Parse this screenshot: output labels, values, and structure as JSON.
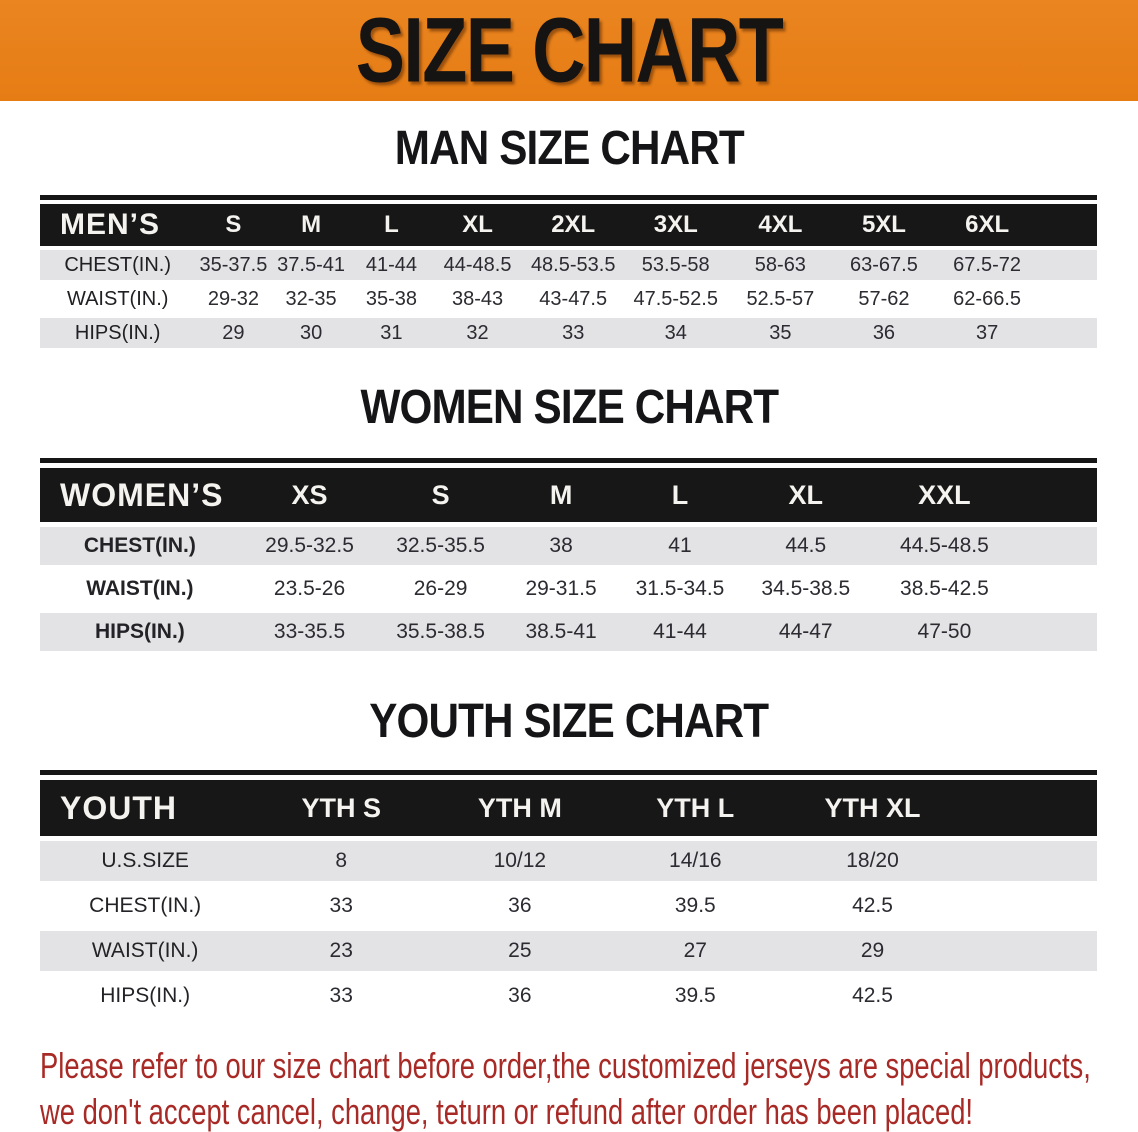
{
  "banner": {
    "title": "SIZE CHART",
    "bg_color": "#E8811B",
    "text_color": "#161313"
  },
  "sections": [
    {
      "title": "MAN SIZE CHART",
      "table": {
        "header_label": "MEN’S",
        "columns": [
          "S",
          "M",
          "L",
          "XL",
          "2XL",
          "3XL",
          "4XL",
          "5XL",
          "6XL"
        ],
        "rows": [
          {
            "label": "CHEST(IN.)",
            "values": [
              "35-37.5",
              "37.5-41",
              "41-44",
              "44-48.5",
              "48.5-53.5",
              "53.5-58",
              "58-63",
              "63-67.5",
              "67.5-72"
            ]
          },
          {
            "label": "WAIST(IN.)",
            "values": [
              "29-32",
              "32-35",
              "35-38",
              "38-43",
              "43-47.5",
              "47.5-52.5",
              "52.5-57",
              "57-62",
              "62-66.5"
            ]
          },
          {
            "label": "HIPS(IN.)",
            "values": [
              "29",
              "30",
              "31",
              "32",
              "33",
              "34",
              "35",
              "36",
              "37"
            ]
          }
        ]
      }
    },
    {
      "title": "WOMEN SIZE CHART",
      "table": {
        "header_label": "WOMEN’S",
        "columns": [
          "XS",
          "S",
          "M",
          "L",
          "XL",
          "XXL"
        ],
        "rows": [
          {
            "label": "CHEST(IN.)",
            "values": [
              "29.5-32.5",
              "32.5-35.5",
              "38",
              "41",
              "44.5",
              "44.5-48.5"
            ]
          },
          {
            "label": "WAIST(IN.)",
            "values": [
              "23.5-26",
              "26-29",
              "29-31.5",
              "31.5-34.5",
              "34.5-38.5",
              "38.5-42.5"
            ]
          },
          {
            "label": "HIPS(IN.)",
            "values": [
              "33-35.5",
              "35.5-38.5",
              "38.5-41",
              "41-44",
              "44-47",
              "47-50"
            ]
          }
        ]
      }
    },
    {
      "title": "YOUTH SIZE CHART",
      "table": {
        "header_label": "YOUTH",
        "columns": [
          "YTH S",
          "YTH M",
          "YTH L",
          "YTH XL"
        ],
        "rows": [
          {
            "label": "U.S.SIZE",
            "values": [
              "8",
              "10/12",
              "14/16",
              "18/20"
            ]
          },
          {
            "label": "CHEST(IN.)",
            "values": [
              "33",
              "36",
              "39.5",
              "42.5"
            ]
          },
          {
            "label": "WAIST(IN.)",
            "values": [
              "23",
              "25",
              "27",
              "29"
            ]
          },
          {
            "label": "HIPS(IN.)",
            "values": [
              "33",
              "36",
              "39.5",
              "42.5"
            ]
          }
        ]
      }
    }
  ],
  "disclaimer": {
    "line1": "Please refer to our size chart before order,the customized jerseys are special products,",
    "line2": "we don't accept cancel, change, teturn or refund after order has been placed!",
    "color": "#A82A26"
  },
  "colors": {
    "banner_orange": "#E8811B",
    "table_band_black": "#171717",
    "row_gray": "#E3E3E5",
    "value_text": "#2B2B31"
  }
}
